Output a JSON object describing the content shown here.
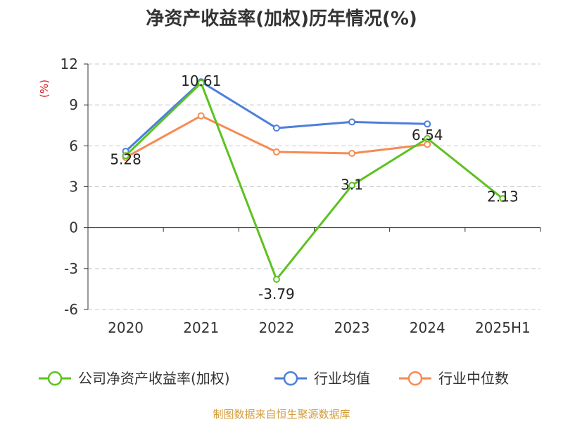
{
  "title": "净资产收益率(加权)历年情况(%)",
  "source": "制图数据来自恒生聚源数据库",
  "chart_data": {
    "type": "line",
    "categories": [
      "2020",
      "2021",
      "2022",
      "2023",
      "2024",
      "2025H1"
    ],
    "yunit": "(%)",
    "ylim": [
      -6,
      12
    ],
    "yticks": [
      -6,
      -3,
      0,
      3,
      6,
      9,
      12
    ],
    "grid": true,
    "legend_position": "bottom",
    "series": [
      {
        "name": "公司净资产收益率(加权)",
        "color": "#5cc220",
        "values": [
          5.28,
          10.61,
          -3.79,
          3.1,
          6.54,
          2.13
        ],
        "labels": [
          "5.28",
          "10.61",
          "-3.79",
          "3.1",
          "6.54",
          "2.13"
        ]
      },
      {
        "name": "行业均值",
        "color": "#4d7fdb",
        "values": [
          5.6,
          10.7,
          7.3,
          7.75,
          7.6,
          null
        ]
      },
      {
        "name": "行业中位数",
        "color": "#f58c54",
        "values": [
          5.15,
          8.2,
          5.55,
          5.45,
          6.1,
          null
        ]
      }
    ]
  },
  "colors": {
    "title": "#333333",
    "unit": "#d21e1e",
    "source": "#d29b3c",
    "axis": "#333333",
    "grid": "#c8c8c8"
  }
}
